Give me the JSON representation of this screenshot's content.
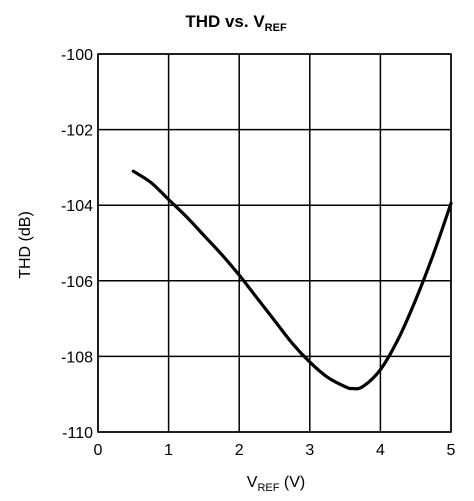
{
  "chart_data": {
    "type": "line",
    "title": {
      "main": "THD vs. V",
      "sub": "REF"
    },
    "xlabel": {
      "main": "V",
      "sub": "REF",
      "suffix": " (V)"
    },
    "ylabel": "THD (dB)",
    "xlim": [
      0,
      5
    ],
    "ylim": [
      -110,
      -100
    ],
    "xticks": [
      "0",
      "1",
      "2",
      "3",
      "4",
      "5"
    ],
    "yticks": [
      "-100",
      "-102",
      "-104",
      "-106",
      "-108",
      "-110"
    ],
    "grid": true,
    "series": [
      {
        "color": "#000000",
        "x": [
          0.5,
          0.75,
          1.0,
          1.25,
          1.5,
          1.75,
          2.0,
          2.25,
          2.5,
          2.75,
          3.0,
          3.25,
          3.5,
          3.6,
          3.75,
          4.0,
          4.25,
          4.5,
          4.75,
          5.0
        ],
        "y": [
          -103.1,
          -103.4,
          -103.85,
          -104.3,
          -104.8,
          -105.3,
          -105.85,
          -106.45,
          -107.05,
          -107.65,
          -108.15,
          -108.55,
          -108.8,
          -108.85,
          -108.8,
          -108.35,
          -107.55,
          -106.5,
          -105.3,
          -103.95
        ]
      }
    ]
  }
}
